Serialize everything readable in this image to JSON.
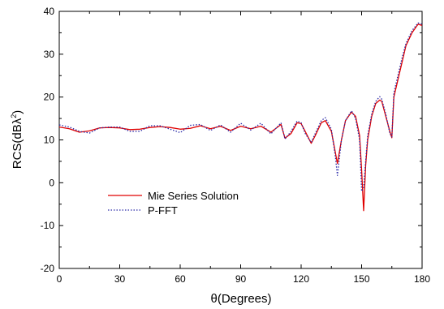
{
  "chart_data": {
    "type": "line",
    "xlabel": "θ(Degrees)",
    "ylabel": "RCS(dBλ²)",
    "ylabel_main": "RCS(dB",
    "ylabel_lambda": "λ",
    "ylabel_exp": "2",
    "ylabel_close": ")",
    "xlim": [
      0,
      180
    ],
    "ylim": [
      -20,
      40
    ],
    "x_ticks": [
      0,
      30,
      60,
      90,
      120,
      150,
      180
    ],
    "y_ticks": [
      -20,
      -10,
      0,
      10,
      20,
      30,
      40
    ],
    "x_tick_labels": [
      "0",
      "30",
      "60",
      "90",
      "120",
      "150",
      "180"
    ],
    "y_tick_labels": [
      "-20",
      "-10",
      "0",
      "10",
      "20",
      "30",
      "40"
    ],
    "grid": false,
    "legend_position": "center-left",
    "series": [
      {
        "name": "Mie Series Solution",
        "color": "#e00000",
        "style": "solid",
        "x": [
          0,
          5,
          10,
          15,
          20,
          25,
          30,
          35,
          40,
          45,
          50,
          55,
          60,
          65,
          70,
          75,
          80,
          85,
          90,
          95,
          100,
          105,
          110,
          112,
          115,
          118,
          120,
          122,
          125,
          127,
          130,
          132,
          135,
          137,
          138,
          140,
          142,
          145,
          147,
          149,
          150,
          151,
          152,
          153,
          155,
          157,
          159,
          160,
          162,
          164,
          165,
          166,
          168,
          170,
          172,
          175,
          178,
          180
        ],
        "y": [
          13,
          12.6,
          11.8,
          12.1,
          12.8,
          12.9,
          12.8,
          12.4,
          12.5,
          12.9,
          13.1,
          12.9,
          12.5,
          12.7,
          13.3,
          12.6,
          13.2,
          12.2,
          13.2,
          12.6,
          13.2,
          11.8,
          13.6,
          10.4,
          11.5,
          14,
          13.8,
          12,
          9.2,
          11,
          14,
          14.5,
          12,
          7,
          4.5,
          10,
          14.5,
          16.5,
          15.5,
          11,
          3,
          -6.5,
          4,
          10,
          15.5,
          18.5,
          19.3,
          19,
          15.5,
          12,
          10.5,
          20,
          24,
          28,
          32,
          35,
          37,
          36.7
        ]
      },
      {
        "name": "P-FFT",
        "color": "#2a2aa8",
        "style": "dotted",
        "x": [
          0,
          5,
          10,
          15,
          20,
          25,
          30,
          35,
          40,
          45,
          50,
          55,
          60,
          65,
          70,
          75,
          80,
          85,
          90,
          95,
          100,
          105,
          110,
          112,
          115,
          118,
          120,
          122,
          125,
          127,
          130,
          132,
          135,
          137,
          138,
          140,
          142,
          145,
          147,
          149,
          150,
          151,
          152,
          153,
          155,
          157,
          159,
          160,
          162,
          164,
          165,
          166,
          168,
          170,
          172,
          175,
          178,
          180
        ],
        "y": [
          13.5,
          13,
          12,
          11.6,
          12.8,
          13,
          13,
          12,
          12,
          13.3,
          13.3,
          12.5,
          11.7,
          13.4,
          13.6,
          12.2,
          13.5,
          11.8,
          13.9,
          12.3,
          13.9,
          11.4,
          14,
          10.2,
          12,
          14.4,
          14,
          11.5,
          9.4,
          11.5,
          14.5,
          15.2,
          12.5,
          6,
          1.7,
          10,
          14.5,
          16.8,
          15,
          10,
          -2,
          -1,
          5,
          11,
          16,
          19,
          20.1,
          19.5,
          16,
          11.5,
          10.7,
          21,
          25,
          29,
          32.5,
          35.5,
          37.3,
          37
        ]
      }
    ]
  }
}
